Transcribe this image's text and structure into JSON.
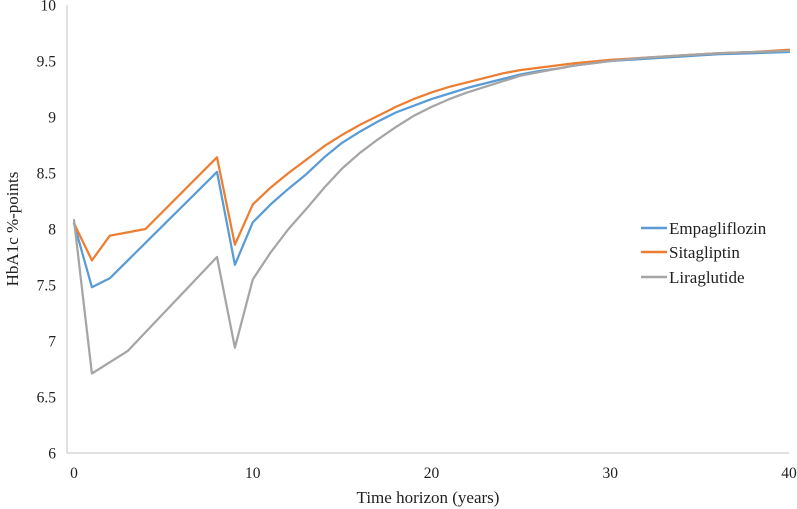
{
  "chart_data": {
    "type": "line",
    "title": "",
    "xlabel": "Time horizon (years)",
    "ylabel": "HbA1c %-points",
    "xlim": [
      0,
      40
    ],
    "ylim": [
      6,
      10
    ],
    "x_ticks": [
      0,
      10,
      20,
      30,
      40
    ],
    "y_ticks": [
      10,
      9.5,
      9,
      8.5,
      8,
      7.5,
      7,
      6.5,
      6
    ],
    "grid": false,
    "legend_position": "right",
    "axis_color": "#CFCFCF",
    "text_color": "#212121",
    "series": [
      {
        "name": "Empagliflozin",
        "color": "#5B9BD5",
        "points": [
          [
            0,
            8.05
          ],
          [
            1,
            7.48
          ],
          [
            2,
            7.56
          ],
          [
            8,
            8.51
          ],
          [
            9,
            7.68
          ],
          [
            10,
            8.06
          ],
          [
            11,
            8.22
          ],
          [
            12,
            8.36
          ],
          [
            13,
            8.49
          ],
          [
            14,
            8.64
          ],
          [
            15,
            8.77
          ],
          [
            16,
            8.87
          ],
          [
            17,
            8.96
          ],
          [
            18,
            9.04
          ],
          [
            19,
            9.1
          ],
          [
            20,
            9.16
          ],
          [
            21,
            9.21
          ],
          [
            22,
            9.26
          ],
          [
            23,
            9.3
          ],
          [
            24,
            9.34
          ],
          [
            25,
            9.38
          ],
          [
            26,
            9.41
          ],
          [
            27,
            9.43
          ],
          [
            28,
            9.46
          ],
          [
            30,
            9.5
          ],
          [
            32,
            9.52
          ],
          [
            34,
            9.54
          ],
          [
            36,
            9.56
          ],
          [
            38,
            9.57
          ],
          [
            40,
            9.58
          ]
        ]
      },
      {
        "name": "Sitagliptin",
        "color": "#ED7D31",
        "points": [
          [
            0,
            8.05
          ],
          [
            1,
            7.72
          ],
          [
            2,
            7.94
          ],
          [
            3,
            7.97
          ],
          [
            4,
            8.0
          ],
          [
            8,
            8.64
          ],
          [
            9,
            7.86
          ],
          [
            10,
            8.22
          ],
          [
            11,
            8.37
          ],
          [
            12,
            8.5
          ],
          [
            13,
            8.62
          ],
          [
            14,
            8.74
          ],
          [
            15,
            8.84
          ],
          [
            16,
            8.93
          ],
          [
            17,
            9.01
          ],
          [
            18,
            9.09
          ],
          [
            19,
            9.16
          ],
          [
            20,
            9.22
          ],
          [
            21,
            9.27
          ],
          [
            22,
            9.31
          ],
          [
            23,
            9.35
          ],
          [
            24,
            9.39
          ],
          [
            25,
            9.42
          ],
          [
            26,
            9.44
          ],
          [
            27,
            9.46
          ],
          [
            28,
            9.48
          ],
          [
            30,
            9.51
          ],
          [
            32,
            9.53
          ],
          [
            34,
            9.55
          ],
          [
            36,
            9.57
          ],
          [
            38,
            9.58
          ],
          [
            40,
            9.6
          ]
        ]
      },
      {
        "name": "Liraglutide",
        "color": "#A5A5A5",
        "points": [
          [
            0,
            8.08
          ],
          [
            1,
            6.71
          ],
          [
            3,
            6.91
          ],
          [
            8,
            7.75
          ],
          [
            9,
            6.94
          ],
          [
            10,
            7.55
          ],
          [
            11,
            7.79
          ],
          [
            12,
            8.0
          ],
          [
            13,
            8.18
          ],
          [
            14,
            8.37
          ],
          [
            15,
            8.54
          ],
          [
            16,
            8.68
          ],
          [
            17,
            8.8
          ],
          [
            18,
            8.91
          ],
          [
            19,
            9.01
          ],
          [
            20,
            9.09
          ],
          [
            21,
            9.16
          ],
          [
            22,
            9.22
          ],
          [
            23,
            9.27
          ],
          [
            24,
            9.32
          ],
          [
            25,
            9.37
          ],
          [
            26,
            9.4
          ],
          [
            27,
            9.43
          ],
          [
            28,
            9.46
          ],
          [
            30,
            9.5
          ],
          [
            32,
            9.53
          ],
          [
            34,
            9.55
          ],
          [
            36,
            9.57
          ],
          [
            38,
            9.58
          ],
          [
            40,
            9.59
          ]
        ]
      }
    ]
  }
}
